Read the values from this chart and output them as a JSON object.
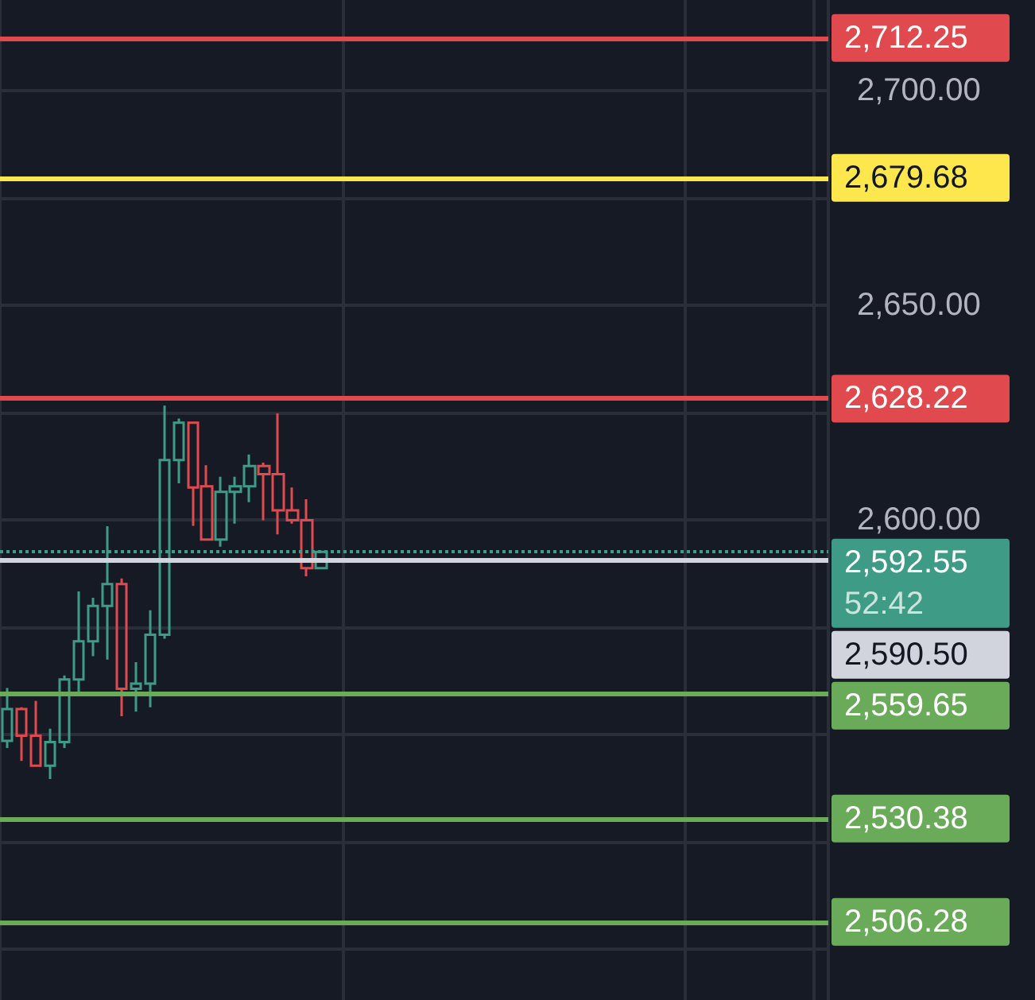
{
  "chart_data": {
    "type": "candlestick",
    "categories": [
      null,
      null,
      null,
      null,
      null,
      null,
      null,
      null,
      null,
      null,
      null,
      null,
      null,
      null,
      null,
      null,
      null,
      null,
      null,
      null,
      null,
      null,
      null,
      null,
      null,
      null,
      null,
      null,
      null,
      null,
      null,
      null,
      null,
      null,
      null,
      null,
      null,
      null,
      null,
      null,
      null,
      null,
      null,
      null,
      null,
      null,
      null,
      null,
      null,
      null,
      null,
      null,
      null,
      null,
      null,
      null,
      null,
      null
    ],
    "ohlc": [
      [
        2548.5,
        2560.8,
        2546.8,
        2555.9
      ],
      [
        2555.9,
        2556.3,
        2543.8,
        2549.7
      ],
      [
        2549.7,
        2557.8,
        2542.7,
        2542.7
      ],
      [
        2542.7,
        2551.3,
        2539.6,
        2548.2
      ],
      [
        2548.2,
        2563.7,
        2546.8,
        2562.8
      ],
      [
        2562.8,
        2583.3,
        2559.6,
        2571.7
      ],
      [
        2571.7,
        2581.8,
        2568.2,
        2579.9
      ],
      [
        2579.9,
        2598.5,
        2567.4,
        2585.0
      ],
      [
        2585.0,
        2586.3,
        2554.2,
        2560.6
      ],
      [
        2560.6,
        2566.8,
        2555.3,
        2561.8
      ],
      [
        2561.8,
        2578.9,
        2556.3,
        2573.2
      ],
      [
        2573.2,
        2626.6,
        2572.3,
        2613.9
      ],
      [
        2613.9,
        2623.6,
        2608.5,
        2622.6
      ],
      [
        2622.6,
        2622.6,
        2598.6,
        2607.5
      ],
      [
        2607.8,
        2612.7,
        2595.4,
        2595.4
      ],
      [
        2595.4,
        2610.0,
        2593.7,
        2606.5
      ],
      [
        2606.5,
        2610.0,
        2599.1,
        2607.8
      ],
      [
        2607.8,
        2615.2,
        2604.1,
        2612.5
      ],
      [
        2612.5,
        2613.3,
        2599.9,
        2610.6
      ],
      [
        2610.6,
        2624.8,
        2596.6,
        2602.2
      ],
      [
        2602.2,
        2607.5,
        2599.1,
        2599.9
      ],
      [
        2599.9,
        2604.8,
        2586.8,
        2588.7
      ],
      [
        2588.7,
        2592.5,
        2588.7,
        2592.5
      ],
      null,
      null,
      null,
      null,
      null,
      null,
      null,
      null,
      null,
      null,
      null,
      null,
      null,
      null,
      null,
      null,
      null,
      null,
      null,
      null,
      null,
      null,
      null,
      null,
      null,
      null,
      null,
      null,
      null,
      null,
      null,
      null,
      null,
      null,
      null
    ],
    "colors": [
      "#3e9b86",
      "#e04a4f",
      "#e04a4f",
      "#3e9b86",
      "#3e9b86",
      "#3e9b86",
      "#3e9b86",
      "#3e9b86",
      "#e04a4f",
      "#3e9b86",
      "#3e9b86",
      "#3e9b86",
      "#3e9b86",
      "#e04a4f",
      "#e04a4f",
      "#3e9b86",
      "#3e9b86",
      "#3e9b86",
      "#e04a4f",
      "#e04a4f",
      "#e04a4f",
      "#e04a4f",
      "#3e9b86",
      null,
      null,
      null,
      null,
      null,
      null,
      null,
      null,
      null,
      null,
      null,
      null,
      null,
      null,
      null,
      null,
      null,
      null,
      null,
      null,
      null,
      null,
      null,
      null,
      null,
      null,
      null,
      null,
      null,
      null,
      null,
      null,
      null,
      null,
      null
    ],
    "ylim": [
      2488.1,
      2721.1
    ],
    "yticks": [
      {
        "value": 2500,
        "label": null
      },
      {
        "value": 2525,
        "label": null
      },
      {
        "value": 2550,
        "label": null
      },
      {
        "value": 2575,
        "label": null
      },
      {
        "value": 2600,
        "label": "2,600.00"
      },
      {
        "value": 2625,
        "label": null
      },
      {
        "value": 2650,
        "label": "2,650.00"
      },
      {
        "value": 2675,
        "label": null
      },
      {
        "value": 2700,
        "label": "2,700.00"
      }
    ],
    "grid": true,
    "tick_labels": "y",
    "ref_lines": [
      {
        "axis": "y",
        "value": 2712.25,
        "label": "2,712.25",
        "color": "#e04a4f",
        "line_style": "solid"
      },
      {
        "axis": "y",
        "value": 2679.68,
        "label": "2,679.68",
        "color": "#fde74c",
        "line_style": "solid"
      },
      {
        "axis": "y",
        "value": 2628.22,
        "label": "2,628.22",
        "color": "#e04a4f",
        "line_style": "solid"
      },
      {
        "axis": "y",
        "value": 2592.55,
        "label": "2,592.55",
        "color": "#3e9b86",
        "line_style": "dotted"
      },
      {
        "axis": "y",
        "value": 2590.5,
        "label": "2,590.50",
        "color": "#d1d4dc",
        "line_style": "solid"
      },
      {
        "axis": "y",
        "value": 2559.65,
        "label": "2,559.65",
        "color": "#6aab5a",
        "line_style": "solid"
      },
      {
        "axis": "y",
        "value": 2530.38,
        "label": "2,530.38",
        "color": "#6aab5a",
        "line_style": "solid"
      },
      {
        "axis": "y",
        "value": 2506.28,
        "label": "2,506.28",
        "color": "#6aab5a",
        "line_style": "solid"
      }
    ],
    "annotations": [
      "52:42"
    ]
  }
}
